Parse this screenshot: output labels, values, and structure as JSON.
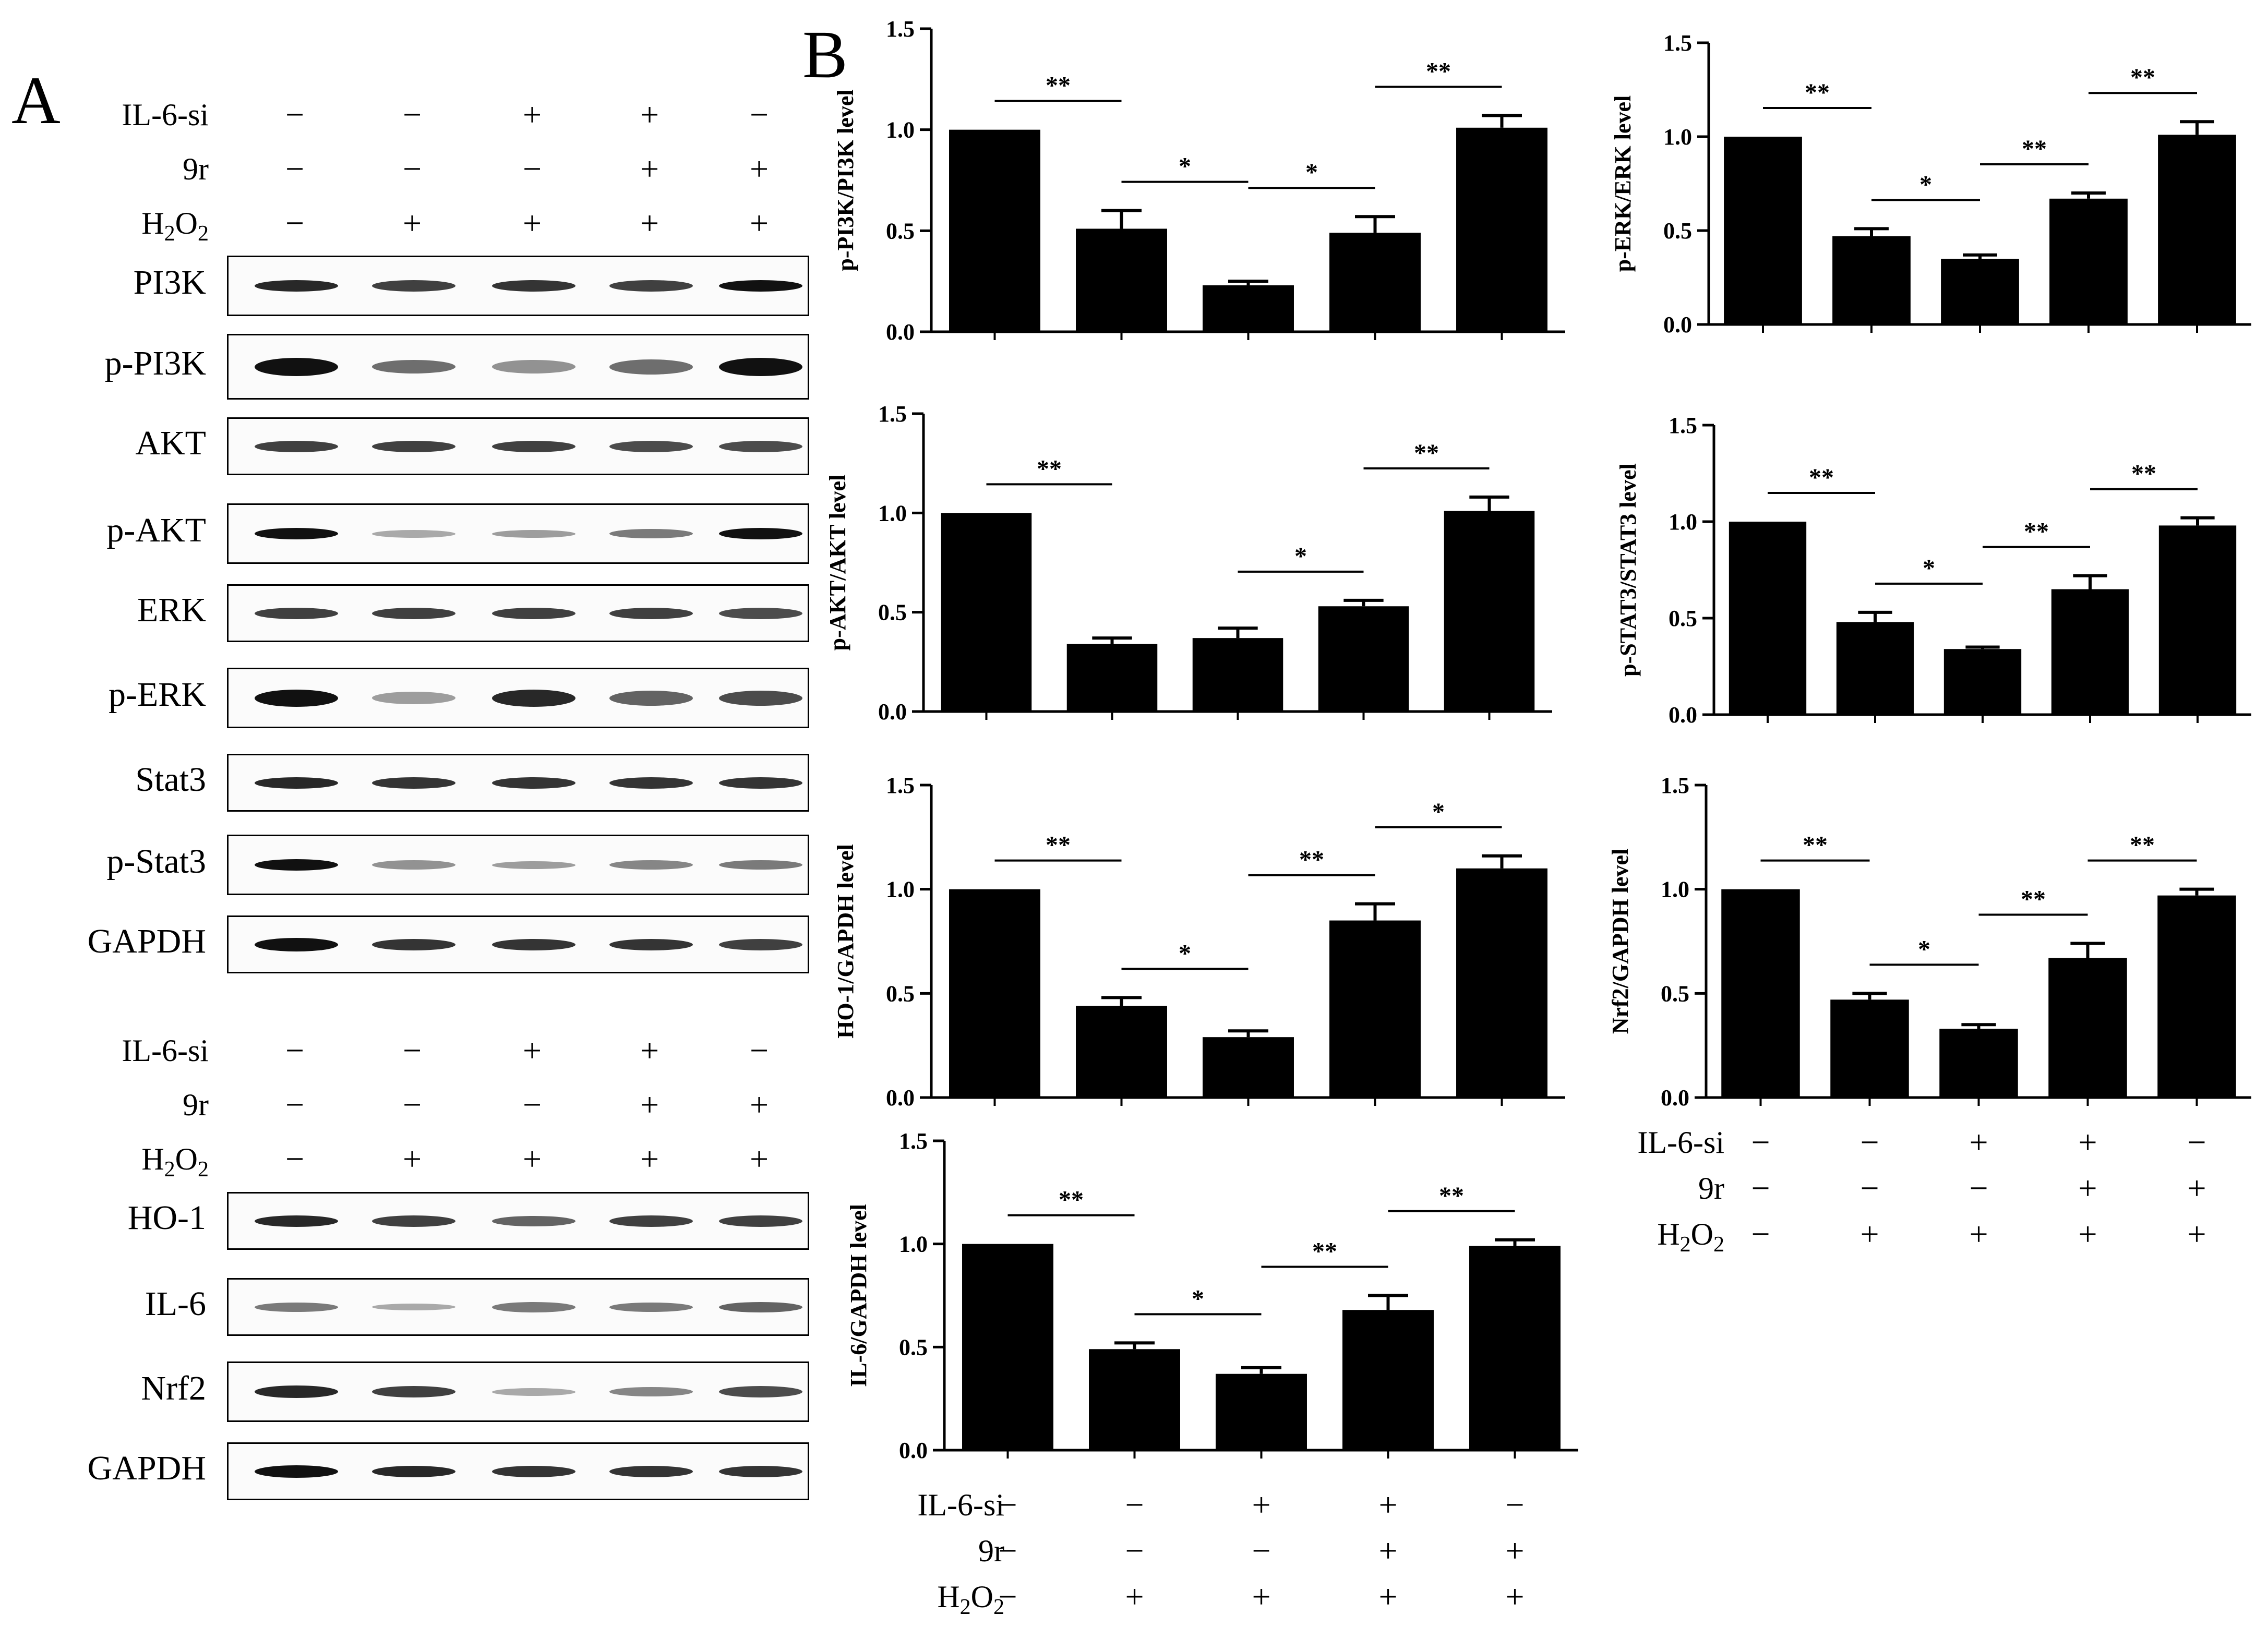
{
  "panel_a": {
    "letter": "A",
    "conditions_top": [
      {
        "label": "IL-6-si",
        "signs": [
          "-",
          "-",
          "+",
          "+",
          "-"
        ]
      },
      {
        "label": "9r",
        "signs": [
          "-",
          "-",
          "-",
          "+",
          "+"
        ]
      },
      {
        "label": "H2O2",
        "signs": [
          "-",
          "+",
          "+",
          "+",
          "+"
        ]
      }
    ],
    "blots_top": [
      "PI3K",
      "p-PI3K",
      "AKT",
      "p-AKT",
      "ERK",
      "p-ERK",
      "Stat3",
      "p-Stat3",
      "GAPDH"
    ],
    "conditions_bottom": [
      {
        "label": "IL-6-si",
        "signs": [
          "-",
          "-",
          "+",
          "+",
          "-"
        ]
      },
      {
        "label": "9r",
        "signs": [
          "-",
          "-",
          "-",
          "+",
          "+"
        ]
      },
      {
        "label": "H2O2",
        "signs": [
          "-",
          "+",
          "+",
          "+",
          "+"
        ]
      }
    ],
    "blots_bottom": [
      "HO-1",
      "IL-6",
      "Nrf2",
      "GAPDH"
    ]
  },
  "panel_b": {
    "letter": "B",
    "conditions_right": [
      {
        "label": "IL-6-si",
        "signs": [
          "-",
          "-",
          "+",
          "+",
          "-"
        ]
      },
      {
        "label": "9r",
        "signs": [
          "-",
          "-",
          "-",
          "+",
          "+"
        ]
      },
      {
        "label": "H2O2",
        "signs": [
          "-",
          "+",
          "+",
          "+",
          "+"
        ]
      }
    ],
    "conditions_bottom": [
      {
        "label": "IL-6-si",
        "signs": [
          "-",
          "-",
          "+",
          "+",
          "-"
        ]
      },
      {
        "label": "9r",
        "signs": [
          "-",
          "-",
          "-",
          "+",
          "+"
        ]
      },
      {
        "label": "H2O2",
        "signs": [
          "-",
          "+",
          "+",
          "+",
          "+"
        ]
      }
    ]
  },
  "chart_data": [
    {
      "type": "bar",
      "ylabel": "p-PI3K/PI3K level",
      "ylim": [
        0,
        1.5
      ],
      "yticks": [
        "0.0",
        "0.5",
        "1.0",
        "1.5"
      ],
      "values": [
        1.0,
        0.51,
        0.23,
        0.49,
        1.01
      ],
      "errors": [
        0,
        0.09,
        0.02,
        0.08,
        0.06
      ],
      "significance": [
        {
          "from": 0,
          "to": 1,
          "label": "**"
        },
        {
          "from": 1,
          "to": 2,
          "label": "*"
        },
        {
          "from": 2,
          "to": 3,
          "label": "*"
        },
        {
          "from": 3,
          "to": 4,
          "label": "**"
        }
      ]
    },
    {
      "type": "bar",
      "ylabel": "p-ERK/ERK level",
      "ylim": [
        0,
        1.5
      ],
      "yticks": [
        "0.0",
        "0.5",
        "1.0",
        "1.5"
      ],
      "values": [
        1.0,
        0.47,
        0.35,
        0.67,
        1.01
      ],
      "errors": [
        0,
        0.04,
        0.02,
        0.03,
        0.07
      ],
      "significance": [
        {
          "from": 0,
          "to": 1,
          "label": "**"
        },
        {
          "from": 1,
          "to": 2,
          "label": "*"
        },
        {
          "from": 2,
          "to": 3,
          "label": "**"
        },
        {
          "from": 3,
          "to": 4,
          "label": "**"
        }
      ]
    },
    {
      "type": "bar",
      "ylabel": "p-AKT/AKT level",
      "ylim": [
        0,
        1.5
      ],
      "yticks": [
        "0.0",
        "0.5",
        "1.0",
        "1.5"
      ],
      "values": [
        1.0,
        0.34,
        0.37,
        0.53,
        1.01
      ],
      "errors": [
        0,
        0.03,
        0.05,
        0.03,
        0.07
      ],
      "significance": [
        {
          "from": 0,
          "to": 1,
          "label": "**"
        },
        {
          "from": 2,
          "to": 3,
          "label": "*"
        },
        {
          "from": 3,
          "to": 4,
          "label": "**"
        }
      ]
    },
    {
      "type": "bar",
      "ylabel": "p-STAT3/STAT3 level",
      "ylim": [
        0,
        1.5
      ],
      "yticks": [
        "0.0",
        "0.5",
        "1.0",
        "1.5"
      ],
      "values": [
        1.0,
        0.48,
        0.34,
        0.65,
        0.98
      ],
      "errors": [
        0,
        0.05,
        0.01,
        0.07,
        0.04
      ],
      "significance": [
        {
          "from": 0,
          "to": 1,
          "label": "**"
        },
        {
          "from": 1,
          "to": 2,
          "label": "*"
        },
        {
          "from": 2,
          "to": 3,
          "label": "**"
        },
        {
          "from": 3,
          "to": 4,
          "label": "**"
        }
      ]
    },
    {
      "type": "bar",
      "ylabel": "HO-1/GAPDH level",
      "ylim": [
        0,
        1.5
      ],
      "yticks": [
        "0.0",
        "0.5",
        "1.0",
        "1.5"
      ],
      "values": [
        1.0,
        0.44,
        0.29,
        0.85,
        1.1
      ],
      "errors": [
        0,
        0.04,
        0.03,
        0.08,
        0.06
      ],
      "significance": [
        {
          "from": 0,
          "to": 1,
          "label": "**"
        },
        {
          "from": 1,
          "to": 2,
          "label": "*"
        },
        {
          "from": 2,
          "to": 3,
          "label": "**"
        },
        {
          "from": 3,
          "to": 4,
          "label": "*"
        }
      ]
    },
    {
      "type": "bar",
      "ylabel": "Nrf2/GAPDH level",
      "ylim": [
        0,
        1.5
      ],
      "yticks": [
        "0.0",
        "0.5",
        "1.0",
        "1.5"
      ],
      "values": [
        1.0,
        0.47,
        0.33,
        0.67,
        0.97
      ],
      "errors": [
        0,
        0.03,
        0.02,
        0.07,
        0.03
      ],
      "significance": [
        {
          "from": 0,
          "to": 1,
          "label": "**"
        },
        {
          "from": 1,
          "to": 2,
          "label": "*"
        },
        {
          "from": 2,
          "to": 3,
          "label": "**"
        },
        {
          "from": 3,
          "to": 4,
          "label": "**"
        }
      ]
    },
    {
      "type": "bar",
      "ylabel": "IL-6/GAPDH level",
      "ylim": [
        0,
        1.5
      ],
      "yticks": [
        "0.0",
        "0.5",
        "1.0",
        "1.5"
      ],
      "values": [
        1.0,
        0.49,
        0.37,
        0.68,
        0.99
      ],
      "errors": [
        0,
        0.03,
        0.03,
        0.07,
        0.03
      ],
      "significance": [
        {
          "from": 0,
          "to": 1,
          "label": "**"
        },
        {
          "from": 1,
          "to": 2,
          "label": "*"
        },
        {
          "from": 2,
          "to": 3,
          "label": "**"
        },
        {
          "from": 3,
          "to": 4,
          "label": "**"
        }
      ]
    }
  ]
}
